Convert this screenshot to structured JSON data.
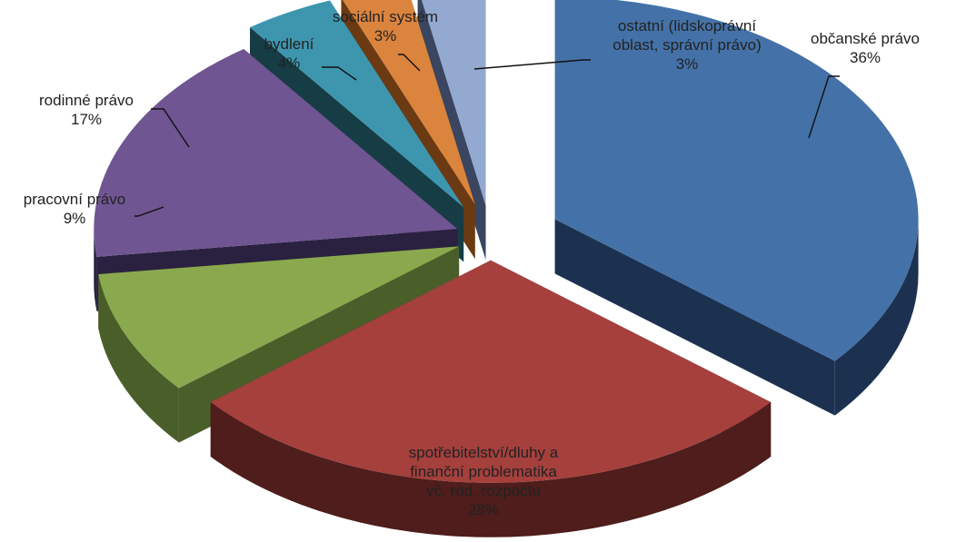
{
  "chart_data": {
    "type": "pie",
    "title": "",
    "slices": [
      {
        "label": [
          "občanské právo"
        ],
        "value": 36,
        "value_label": "36%",
        "color": "#4472A8",
        "side_color": "#1C3150"
      },
      {
        "label": [
          "spotřebitelství/dluhy a",
          "finanční problematika",
          "vč. rod. rozpočtu"
        ],
        "value": 28,
        "value_label": "28%",
        "color": "#A5403D",
        "side_color": "#4E1D1C"
      },
      {
        "label": [
          "pracovní právo"
        ],
        "value": 9,
        "value_label": "9%",
        "color": "#8AA94E",
        "side_color": "#4A5E2A"
      },
      {
        "label": [
          "rodinné právo"
        ],
        "value": 17,
        "value_label": "17%",
        "color": "#6F5591",
        "side_color": "#2A2140"
      },
      {
        "label": [
          "bydlení"
        ],
        "value": 4,
        "value_label": "4%",
        "color": "#3D96AE",
        "side_color": "#163C45"
      },
      {
        "label": [
          "sociální systém"
        ],
        "value": 3,
        "value_label": "3%",
        "color": "#DB843D",
        "side_color": "#6B3A12"
      },
      {
        "label": [
          "ostatní (lidskoprávní",
          "oblast, správní právo)"
        ],
        "value": 3,
        "value_label": "3%",
        "color": "#93A9D0",
        "side_color": "#3A4560"
      }
    ],
    "legend": "none",
    "style": "3d-exploded"
  }
}
